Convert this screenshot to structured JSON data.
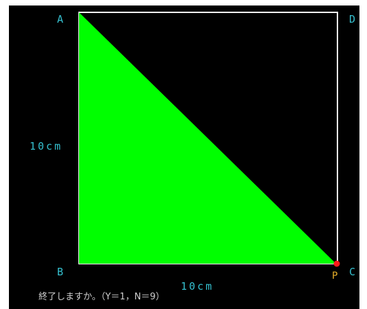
{
  "vertices": {
    "a": "A",
    "b": "B",
    "c": "C",
    "d": "D"
  },
  "point_label": "P",
  "dimensions": {
    "vertical": "10cm",
    "horizontal": "10cm"
  },
  "prompt": "終了しますか。（Y＝1，N＝9）",
  "colors": {
    "background": "#000000",
    "square": "#ffffff",
    "triangle": "#00ff00",
    "vertex_label": "#35c0cf",
    "point": "#ff1a1a",
    "point_label": "#e8b02a",
    "prompt": "#cfcfcf"
  }
}
